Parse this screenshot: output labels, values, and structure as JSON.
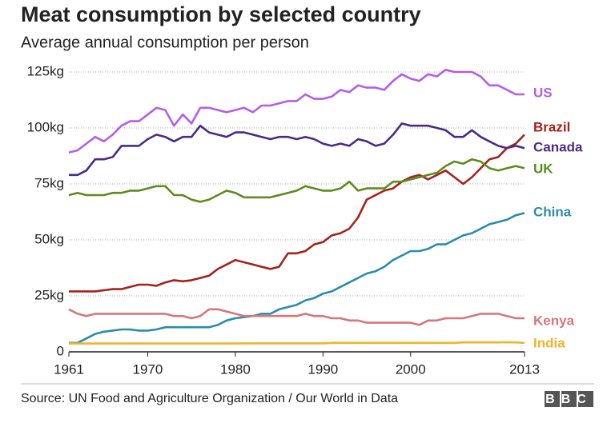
{
  "chart_data": {
    "type": "line",
    "title": "Meat consumption by selected country",
    "subtitle": "Average annual consumption per person",
    "source": "Source: UN Food and Agriculture Organization / Our World in Data",
    "logo": "BBC",
    "x": [
      1961,
      1962,
      1963,
      1964,
      1965,
      1966,
      1967,
      1968,
      1969,
      1970,
      1971,
      1972,
      1973,
      1974,
      1975,
      1976,
      1977,
      1978,
      1979,
      1980,
      1981,
      1982,
      1983,
      1984,
      1985,
      1986,
      1987,
      1988,
      1989,
      1990,
      1991,
      1992,
      1993,
      1994,
      1995,
      1996,
      1997,
      1998,
      1999,
      2000,
      2001,
      2002,
      2003,
      2004,
      2005,
      2006,
      2007,
      2008,
      2009,
      2010,
      2011,
      2012,
      2013
    ],
    "xlim": [
      1961,
      2013
    ],
    "xticks": [
      1961,
      1970,
      1980,
      1990,
      2000,
      2013
    ],
    "ylim": [
      0,
      125
    ],
    "yticks": [
      0,
      {
        "value": 25,
        "label": "25kg"
      },
      {
        "value": 50,
        "label": "50kg"
      },
      {
        "value": 75,
        "label": "75kg"
      },
      {
        "value": 100,
        "label": "100kg"
      },
      {
        "value": 125,
        "label": "125kg"
      }
    ],
    "grid": true,
    "series": [
      {
        "name": "US",
        "color": "#b45ee8",
        "values": [
          89,
          90,
          93,
          96,
          94,
          97,
          101,
          103,
          103,
          106,
          109,
          108,
          101,
          106,
          102,
          109,
          109,
          108,
          107,
          108,
          109,
          107,
          110,
          110,
          111,
          112,
          112,
          115,
          113,
          113,
          114,
          117,
          116,
          119,
          118,
          118,
          117,
          121,
          124,
          122,
          121,
          124,
          123,
          126,
          125,
          125,
          125,
          123,
          119,
          119,
          117,
          115,
          115
        ]
      },
      {
        "name": "Brazil",
        "color": "#a3231b",
        "values": [
          27,
          27,
          27,
          27,
          27.5,
          28,
          28,
          29,
          30,
          30,
          29.5,
          31,
          32,
          31.5,
          32,
          33,
          34,
          37,
          39,
          41,
          40,
          39,
          38,
          37,
          38,
          44,
          44,
          45,
          48,
          49,
          52,
          53,
          55,
          60,
          68,
          70,
          72,
          73,
          76,
          78,
          79,
          77,
          79,
          81,
          78,
          75,
          78,
          82,
          86,
          87,
          91,
          93,
          97
        ]
      },
      {
        "name": "Canada",
        "color": "#4a2b86",
        "values": [
          79,
          79,
          81,
          86,
          86,
          87,
          92,
          92,
          92,
          95,
          97,
          96,
          94,
          96,
          96,
          101,
          98,
          97,
          96,
          98,
          98,
          97,
          96,
          95,
          96,
          96,
          95,
          96,
          95,
          93,
          92,
          93,
          92,
          95,
          94,
          92,
          93,
          97,
          102,
          101,
          101,
          101,
          100,
          99,
          96,
          96,
          99,
          96,
          94,
          92,
          91,
          92,
          91
        ]
      },
      {
        "name": "UK",
        "color": "#5b8c1c",
        "values": [
          70,
          71,
          70,
          70,
          70,
          71,
          71,
          72,
          72,
          73,
          74,
          74,
          70,
          70,
          68,
          67,
          68,
          70,
          72,
          71,
          69,
          69,
          69,
          69,
          70,
          71,
          72,
          74,
          73,
          72,
          72,
          73,
          76,
          72,
          73,
          73,
          73,
          76,
          76,
          77,
          78,
          79,
          80,
          83,
          85,
          84,
          86,
          85,
          82,
          81,
          82,
          83,
          82
        ]
      },
      {
        "name": "China",
        "color": "#2a8cab",
        "values": [
          4,
          4,
          6,
          8,
          9,
          9.5,
          10,
          10,
          9.5,
          9.5,
          10,
          11,
          11,
          11,
          11,
          11,
          11,
          12,
          14,
          15,
          15.5,
          16,
          17,
          17,
          19,
          20,
          21,
          23,
          24,
          26,
          27,
          29,
          31,
          33,
          35,
          36,
          38,
          41,
          43,
          45,
          45,
          46,
          48,
          48,
          50,
          52,
          53,
          55,
          57,
          58,
          59,
          61,
          62
        ]
      },
      {
        "name": "Kenya",
        "color": "#d6777a",
        "values": [
          19,
          17,
          16,
          17,
          17,
          17,
          17,
          17,
          17,
          17,
          17,
          17,
          16,
          16,
          15,
          16,
          19,
          19,
          18,
          17,
          16,
          16,
          16,
          16,
          16,
          16,
          16,
          17,
          16,
          16,
          15,
          15,
          14,
          14,
          13,
          13,
          13,
          13,
          13,
          13,
          12,
          14,
          14,
          15,
          15,
          15,
          16,
          17,
          17,
          17,
          16,
          15,
          15
        ]
      },
      {
        "name": "India",
        "color": "#f2b32a",
        "values": [
          3.7,
          3.7,
          3.7,
          3.7,
          3.7,
          3.7,
          3.7,
          3.7,
          3.7,
          3.7,
          3.7,
          3.7,
          3.7,
          3.7,
          3.7,
          3.7,
          3.7,
          3.7,
          3.7,
          3.7,
          3.8,
          3.8,
          3.8,
          3.8,
          3.8,
          3.8,
          3.8,
          3.8,
          3.8,
          3.8,
          4,
          4,
          4,
          4,
          4,
          4,
          4,
          4,
          4,
          4,
          4,
          4,
          4,
          4,
          4,
          4.2,
          4.2,
          4.2,
          4.2,
          4.2,
          4.3,
          4.2,
          4
        ]
      }
    ]
  }
}
